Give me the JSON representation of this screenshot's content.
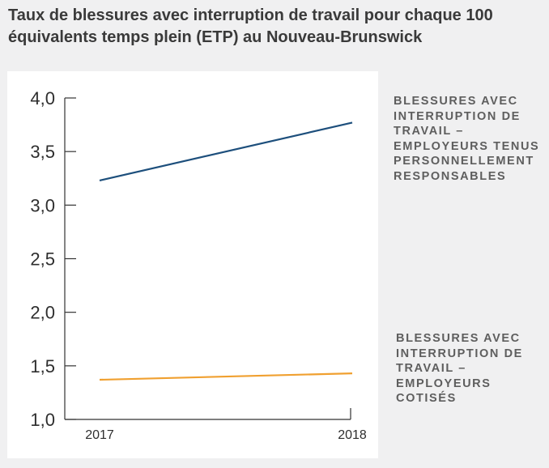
{
  "chart_data": {
    "type": "line",
    "title": "Taux de blessures avec interruption de travail pour chaque 100 équivalents temps plein (ETP) au Nouveau-Brunswick",
    "xlabel": "",
    "ylabel": "",
    "x": [
      "2017",
      "2018"
    ],
    "ylim": [
      1.0,
      4.0
    ],
    "y_ticks": [
      1.0,
      1.5,
      2.0,
      2.5,
      3.0,
      3.5,
      4.0
    ],
    "y_tick_labels": [
      "1,0",
      "1,5",
      "2,0",
      "2,5",
      "3,0",
      "3,5",
      "4,0"
    ],
    "grid": false,
    "legend_position": "right",
    "series": [
      {
        "name": "BLESSURES AVEC INTERRUPTION DE TRAVAIL – EMPLOYEURS TENUS PERSONNELLEMENT RESPONSABLES",
        "values": [
          3.23,
          3.77
        ],
        "color": "#1d4f7c"
      },
      {
        "name": "BLESSURES AVEC INTERRUPTION DE TRAVAIL – EMPLOYEURS COTISÉS",
        "values": [
          1.37,
          1.43
        ],
        "color": "#f0a030"
      }
    ]
  }
}
